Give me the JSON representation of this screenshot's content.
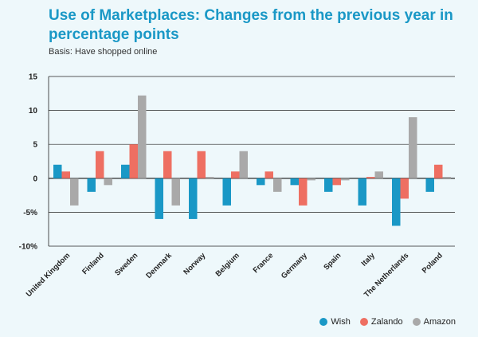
{
  "chart_data": {
    "type": "bar",
    "title": "Use of Marketplaces: Changes from the previous year in percentage points",
    "subtitle": "Basis: Have shopped online",
    "xlabel": "",
    "ylabel": "",
    "ylim": [
      -10,
      15
    ],
    "yticks": [
      15,
      10,
      5,
      0,
      -5,
      -10
    ],
    "ytick_labels": [
      "15",
      "10",
      "5",
      "0",
      "-5%",
      "-10%"
    ],
    "categories": [
      "United Kingdom",
      "Finland",
      "Sweden",
      "Denmark",
      "Norway",
      "Belgium",
      "France",
      "Germany",
      "Spain",
      "Italy",
      "The Netherlands",
      "Poland"
    ],
    "series": [
      {
        "name": "Wish",
        "color": "#1a98c6",
        "values": [
          2,
          -2,
          2,
          -6,
          -6,
          -4,
          -1,
          -1,
          -2,
          -4,
          -7,
          -2
        ]
      },
      {
        "name": "Zalando",
        "color": "#ee6f62",
        "values": [
          1,
          4,
          5,
          4,
          4,
          1,
          1,
          -4,
          -1,
          0.2,
          -3,
          2
        ]
      },
      {
        "name": "Amazon",
        "color": "#a9a9a9",
        "values": [
          -4,
          -1,
          12.2,
          -4,
          0.2,
          4,
          -2,
          -0.3,
          -0.3,
          1,
          9,
          0.2
        ]
      }
    ],
    "legend": "bottom-right",
    "grid": true
  }
}
